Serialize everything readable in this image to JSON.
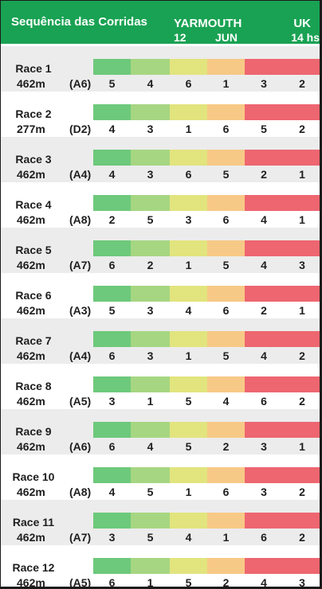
{
  "header": {
    "title": "Sequência das Corridas",
    "venue": "YARMOUTH",
    "day": "12",
    "month": "JUN",
    "country": "UK",
    "time": "14 hs"
  },
  "colors": {
    "header_bg": "#19a253",
    "rank_colors": [
      "#6dc97b",
      "#a6d682",
      "#e2e47e",
      "#f7c986",
      "#ed6670",
      "#ed6670"
    ]
  },
  "races": [
    {
      "name": "Race 1",
      "distance": "462m",
      "grade": "(A6)",
      "traps": [
        "5",
        "4",
        "6",
        "1",
        "3",
        "2"
      ]
    },
    {
      "name": "Race 2",
      "distance": "277m",
      "grade": "(D2)",
      "traps": [
        "4",
        "3",
        "1",
        "6",
        "5",
        "2"
      ]
    },
    {
      "name": "Race 3",
      "distance": "462m",
      "grade": "(A4)",
      "traps": [
        "4",
        "3",
        "6",
        "5",
        "2",
        "1"
      ]
    },
    {
      "name": "Race 4",
      "distance": "462m",
      "grade": "(A8)",
      "traps": [
        "2",
        "5",
        "3",
        "6",
        "4",
        "1"
      ]
    },
    {
      "name": "Race 5",
      "distance": "462m",
      "grade": "(A7)",
      "traps": [
        "6",
        "2",
        "1",
        "5",
        "4",
        "3"
      ]
    },
    {
      "name": "Race 6",
      "distance": "462m",
      "grade": "(A3)",
      "traps": [
        "5",
        "3",
        "4",
        "6",
        "2",
        "1"
      ]
    },
    {
      "name": "Race 7",
      "distance": "462m",
      "grade": "(A4)",
      "traps": [
        "6",
        "3",
        "1",
        "5",
        "4",
        "2"
      ]
    },
    {
      "name": "Race 8",
      "distance": "462m",
      "grade": "(A5)",
      "traps": [
        "3",
        "1",
        "5",
        "4",
        "6",
        "2"
      ]
    },
    {
      "name": "Race 9",
      "distance": "462m",
      "grade": "(A6)",
      "traps": [
        "6",
        "4",
        "5",
        "2",
        "3",
        "1"
      ]
    },
    {
      "name": "Race 10",
      "distance": "462m",
      "grade": "(A8)",
      "traps": [
        "4",
        "5",
        "1",
        "6",
        "3",
        "2"
      ]
    },
    {
      "name": "Race 11",
      "distance": "462m",
      "grade": "(A7)",
      "traps": [
        "3",
        "5",
        "4",
        "1",
        "6",
        "2"
      ]
    },
    {
      "name": "Race 12",
      "distance": "462m",
      "grade": "(A5)",
      "traps": [
        "6",
        "1",
        "5",
        "2",
        "4",
        "3"
      ]
    }
  ]
}
